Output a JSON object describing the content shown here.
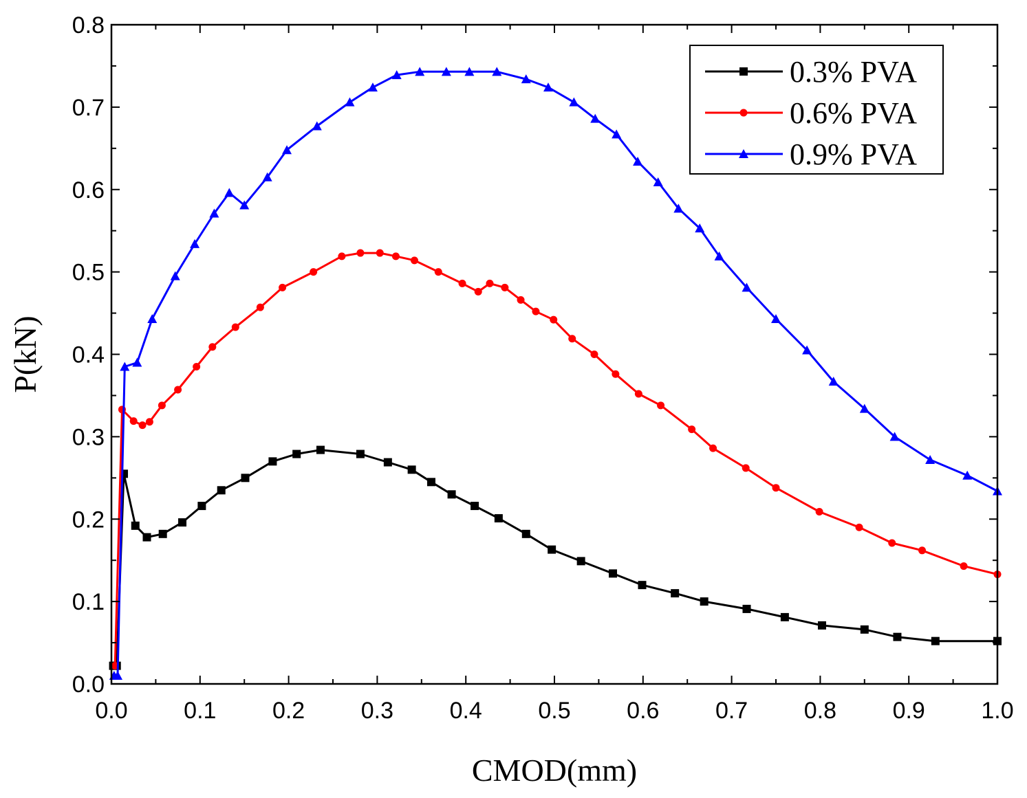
{
  "chart_data": {
    "type": "line",
    "title": "",
    "xlabel": "CMOD(mm)",
    "ylabel": "P(kN)",
    "xlim": [
      0.0,
      1.0
    ],
    "ylim": [
      0.0,
      0.8
    ],
    "x_ticks": [
      "0.0",
      "0.1",
      "0.2",
      "0.3",
      "0.4",
      "0.5",
      "0.6",
      "0.7",
      "0.8",
      "0.9",
      "1.0"
    ],
    "y_ticks": [
      "0.0",
      "0.1",
      "0.2",
      "0.3",
      "0.4",
      "0.5",
      "0.6",
      "0.7",
      "0.8"
    ],
    "grid": false,
    "legend_position": "top-right",
    "series": [
      {
        "name": "0.3% PVA",
        "color": "#000000",
        "marker": "square",
        "points": [
          [
            0.002,
            0.022
          ],
          [
            0.006,
            0.022
          ],
          [
            0.014,
            0.255
          ],
          [
            0.027,
            0.192
          ],
          [
            0.04,
            0.178
          ],
          [
            0.058,
            0.182
          ],
          [
            0.08,
            0.196
          ],
          [
            0.102,
            0.216
          ],
          [
            0.124,
            0.235
          ],
          [
            0.151,
            0.25
          ],
          [
            0.182,
            0.27
          ],
          [
            0.209,
            0.279
          ],
          [
            0.236,
            0.284
          ],
          [
            0.281,
            0.279
          ],
          [
            0.312,
            0.269
          ],
          [
            0.339,
            0.26
          ],
          [
            0.361,
            0.245
          ],
          [
            0.384,
            0.23
          ],
          [
            0.41,
            0.216
          ],
          [
            0.437,
            0.201
          ],
          [
            0.468,
            0.182
          ],
          [
            0.497,
            0.163
          ],
          [
            0.53,
            0.149
          ],
          [
            0.566,
            0.134
          ],
          [
            0.599,
            0.12
          ],
          [
            0.636,
            0.11
          ],
          [
            0.669,
            0.1
          ],
          [
            0.717,
            0.091
          ],
          [
            0.76,
            0.081
          ],
          [
            0.802,
            0.071
          ],
          [
            0.85,
            0.066
          ],
          [
            0.887,
            0.057
          ],
          [
            0.93,
            0.052
          ],
          [
            1.0,
            0.052
          ]
        ]
      },
      {
        "name": "0.6% PVA",
        "color": "#ff0000",
        "marker": "circle",
        "points": [
          [
            0.004,
            0.022
          ],
          [
            0.012,
            0.333
          ],
          [
            0.025,
            0.319
          ],
          [
            0.035,
            0.314
          ],
          [
            0.043,
            0.318
          ],
          [
            0.057,
            0.338
          ],
          [
            0.075,
            0.357
          ],
          [
            0.096,
            0.385
          ],
          [
            0.114,
            0.409
          ],
          [
            0.14,
            0.433
          ],
          [
            0.168,
            0.457
          ],
          [
            0.193,
            0.481
          ],
          [
            0.228,
            0.5
          ],
          [
            0.26,
            0.519
          ],
          [
            0.281,
            0.523
          ],
          [
            0.303,
            0.523
          ],
          [
            0.321,
            0.519
          ],
          [
            0.342,
            0.514
          ],
          [
            0.369,
            0.5
          ],
          [
            0.396,
            0.486
          ],
          [
            0.414,
            0.476
          ],
          [
            0.427,
            0.486
          ],
          [
            0.444,
            0.481
          ],
          [
            0.462,
            0.466
          ],
          [
            0.479,
            0.452
          ],
          [
            0.499,
            0.442
          ],
          [
            0.52,
            0.419
          ],
          [
            0.545,
            0.4
          ],
          [
            0.569,
            0.376
          ],
          [
            0.595,
            0.352
          ],
          [
            0.62,
            0.338
          ],
          [
            0.655,
            0.309
          ],
          [
            0.679,
            0.286
          ],
          [
            0.716,
            0.262
          ],
          [
            0.75,
            0.238
          ],
          [
            0.799,
            0.209
          ],
          [
            0.844,
            0.19
          ],
          [
            0.881,
            0.171
          ],
          [
            0.915,
            0.162
          ],
          [
            0.962,
            0.143
          ],
          [
            1.0,
            0.133
          ]
        ]
      },
      {
        "name": "0.9% PVA",
        "color": "#0000ff",
        "marker": "triangle",
        "points": [
          [
            0.003,
            0.01
          ],
          [
            0.007,
            0.01
          ],
          [
            0.015,
            0.385
          ],
          [
            0.029,
            0.39
          ],
          [
            0.046,
            0.443
          ],
          [
            0.072,
            0.495
          ],
          [
            0.094,
            0.534
          ],
          [
            0.116,
            0.571
          ],
          [
            0.133,
            0.596
          ],
          [
            0.15,
            0.581
          ],
          [
            0.176,
            0.615
          ],
          [
            0.198,
            0.648
          ],
          [
            0.232,
            0.677
          ],
          [
            0.269,
            0.706
          ],
          [
            0.295,
            0.724
          ],
          [
            0.322,
            0.739
          ],
          [
            0.348,
            0.743
          ],
          [
            0.378,
            0.743
          ],
          [
            0.404,
            0.743
          ],
          [
            0.435,
            0.743
          ],
          [
            0.468,
            0.734
          ],
          [
            0.493,
            0.724
          ],
          [
            0.522,
            0.706
          ],
          [
            0.546,
            0.686
          ],
          [
            0.57,
            0.667
          ],
          [
            0.594,
            0.634
          ],
          [
            0.617,
            0.609
          ],
          [
            0.64,
            0.577
          ],
          [
            0.664,
            0.553
          ],
          [
            0.686,
            0.519
          ],
          [
            0.717,
            0.481
          ],
          [
            0.75,
            0.443
          ],
          [
            0.785,
            0.405
          ],
          [
            0.815,
            0.367
          ],
          [
            0.85,
            0.334
          ],
          [
            0.884,
            0.3
          ],
          [
            0.924,
            0.272
          ],
          [
            0.966,
            0.253
          ],
          [
            1.0,
            0.234
          ]
        ]
      }
    ]
  }
}
